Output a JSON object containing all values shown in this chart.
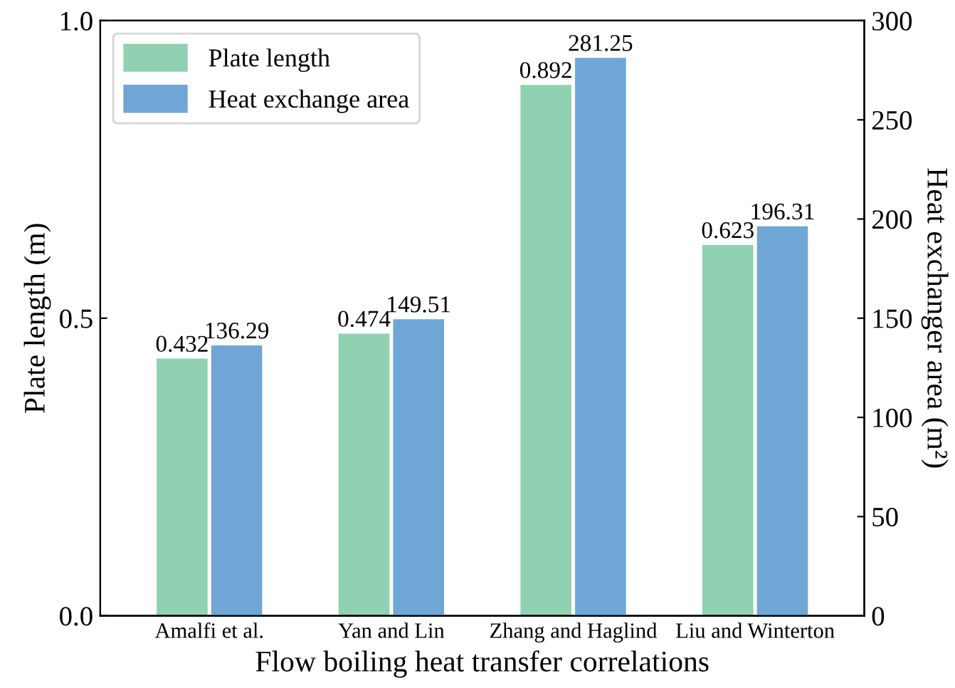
{
  "chart_data": {
    "type": "bar",
    "xlabel": "Flow boiling heat transfer correlations",
    "ylabel": "Plate length (m)",
    "y2label": "Heat exchanger area (m²)",
    "categories": [
      "Amalfi et al.",
      "Yan and Lin",
      "Zhang and Haglind",
      "Liu and Winterton"
    ],
    "series": [
      {
        "name": "Plate length",
        "color": "#8fd1b0",
        "values": [
          0.432,
          0.474,
          0.892,
          0.623
        ]
      },
      {
        "name": "Heat exchange area",
        "color": "#6fa6d6",
        "values": [
          136.29,
          149.51,
          281.25,
          196.31
        ],
        "axis": "y2"
      }
    ],
    "ylim": [
      0,
      1.0
    ],
    "yticks": [
      {
        "value": 0,
        "label": "0.0"
      },
      0.5,
      {
        "value": 1,
        "label": "1.0"
      }
    ],
    "y2lim": [
      0,
      300
    ],
    "y2ticks": [
      0,
      50,
      100,
      150,
      200,
      250,
      300
    ],
    "data_labels": true,
    "legend": "top left",
    "grid": false
  }
}
